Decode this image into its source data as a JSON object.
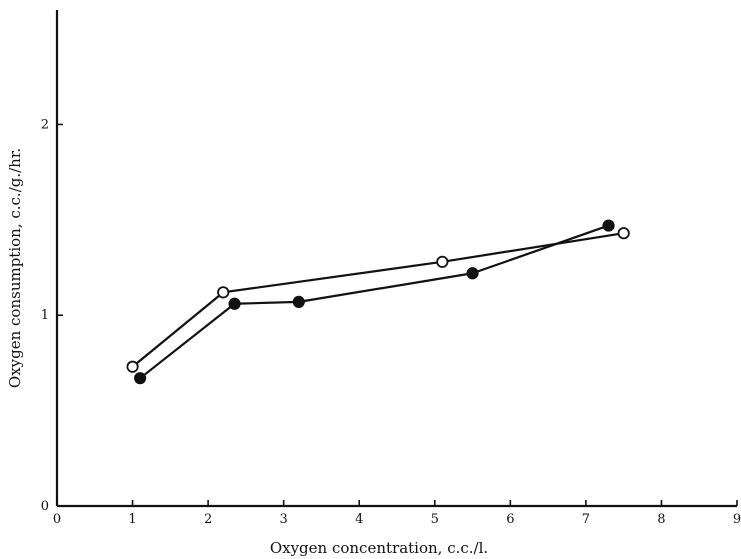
{
  "chart_data": {
    "type": "line",
    "title": "",
    "xlabel": "Oxygen concentration, c.c./l.",
    "ylabel": "Oxygen consumption, c.c./g./hr.",
    "xlim": [
      0,
      9
    ],
    "ylim": [
      0,
      2.6
    ],
    "x_ticks": [
      "0",
      "1",
      "2",
      "3",
      "4",
      "5",
      "6",
      "7",
      "8",
      "9"
    ],
    "y_ticks": [
      "0",
      "1",
      "2"
    ],
    "y_tick_values": [
      0,
      1,
      2
    ],
    "grid": false,
    "legend": false,
    "series": [
      {
        "marker": "open-circle",
        "color": "#111111",
        "points": [
          {
            "x": 1.0,
            "y": 0.73
          },
          {
            "x": 2.2,
            "y": 1.12
          },
          {
            "x": 5.1,
            "y": 1.28
          },
          {
            "x": 7.5,
            "y": 1.43
          }
        ]
      },
      {
        "marker": "filled-circle",
        "color": "#111111",
        "points": [
          {
            "x": 1.1,
            "y": 0.67
          },
          {
            "x": 2.35,
            "y": 1.06
          },
          {
            "x": 3.2,
            "y": 1.07
          },
          {
            "x": 5.5,
            "y": 1.22
          },
          {
            "x": 7.3,
            "y": 1.47
          }
        ]
      }
    ]
  }
}
